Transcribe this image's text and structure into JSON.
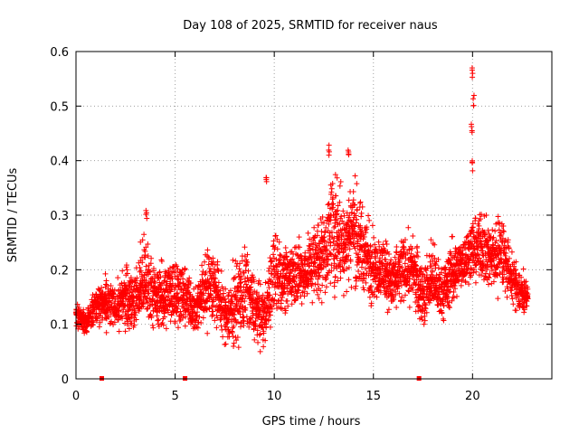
{
  "chart_data": {
    "type": "scatter",
    "title": "Day 108 of 2025, SRMTID for receiver naus",
    "xlabel": "GPS time / hours",
    "ylabel": "SRMTID / TECUs",
    "xlim": [
      0,
      24
    ],
    "ylim": [
      0,
      0.6
    ],
    "x_ticks": [
      0,
      5,
      10,
      15,
      20
    ],
    "x_tick_labels": [
      "0",
      "5",
      "10",
      "15",
      "20"
    ],
    "y_ticks": [
      0,
      0.1,
      0.2,
      0.3,
      0.4,
      0.5,
      0.6
    ],
    "y_tick_labels": [
      "0",
      "0.1",
      "0.2",
      "0.3",
      "0.4",
      "0.5",
      "0.6"
    ],
    "grid": true,
    "marker": "+",
    "series": [
      {
        "name": "SRMTID",
        "color": "#ff0000",
        "envelope_hours": [
          0,
          0.5,
          1,
          1.5,
          2,
          2.5,
          3,
          3.5,
          4,
          4.5,
          5,
          5.5,
          6,
          6.5,
          7,
          7.5,
          8,
          8.5,
          9,
          9.5,
          10,
          10.5,
          11,
          11.5,
          12,
          12.5,
          13,
          13.5,
          14,
          14.5,
          15,
          15.5,
          16,
          16.5,
          17,
          17.5,
          18,
          18.5,
          19,
          19.5,
          20,
          20.5,
          21,
          21.5,
          22,
          22.5,
          22.8
        ],
        "envelope_low": [
          0.08,
          0.07,
          0.09,
          0.08,
          0.08,
          0.07,
          0.07,
          0.06,
          0.08,
          0.07,
          0.07,
          0.08,
          0.07,
          0.07,
          0.07,
          0.05,
          0.03,
          0.05,
          0.05,
          0.04,
          0.08,
          0.1,
          0.1,
          0.12,
          0.12,
          0.12,
          0.13,
          0.12,
          0.14,
          0.12,
          0.12,
          0.12,
          0.11,
          0.11,
          0.12,
          0.07,
          0.09,
          0.09,
          0.12,
          0.15,
          0.16,
          0.15,
          0.14,
          0.13,
          0.12,
          0.1,
          0.13
        ],
        "envelope_high": [
          0.15,
          0.14,
          0.18,
          0.2,
          0.18,
          0.23,
          0.22,
          0.3,
          0.22,
          0.24,
          0.25,
          0.23,
          0.18,
          0.26,
          0.27,
          0.18,
          0.24,
          0.27,
          0.21,
          0.18,
          0.3,
          0.26,
          0.29,
          0.27,
          0.31,
          0.34,
          0.42,
          0.38,
          0.41,
          0.34,
          0.3,
          0.28,
          0.24,
          0.29,
          0.28,
          0.24,
          0.27,
          0.22,
          0.28,
          0.27,
          0.32,
          0.34,
          0.3,
          0.34,
          0.24,
          0.22,
          0.17
        ],
        "spikes": [
          {
            "x": 3.55,
            "y": 0.31
          },
          {
            "x": 9.6,
            "y": 0.37
          },
          {
            "x": 12.75,
            "y": 0.43
          },
          {
            "x": 13.75,
            "y": 0.425
          },
          {
            "x": 20.0,
            "y": 0.57
          },
          {
            "x": 20.05,
            "y": 0.52
          },
          {
            "x": 19.95,
            "y": 0.47
          },
          {
            "x": 20.0,
            "y": 0.4
          }
        ]
      }
    ],
    "gap_markers_hours": [
      1.3,
      5.5,
      17.3
    ]
  }
}
